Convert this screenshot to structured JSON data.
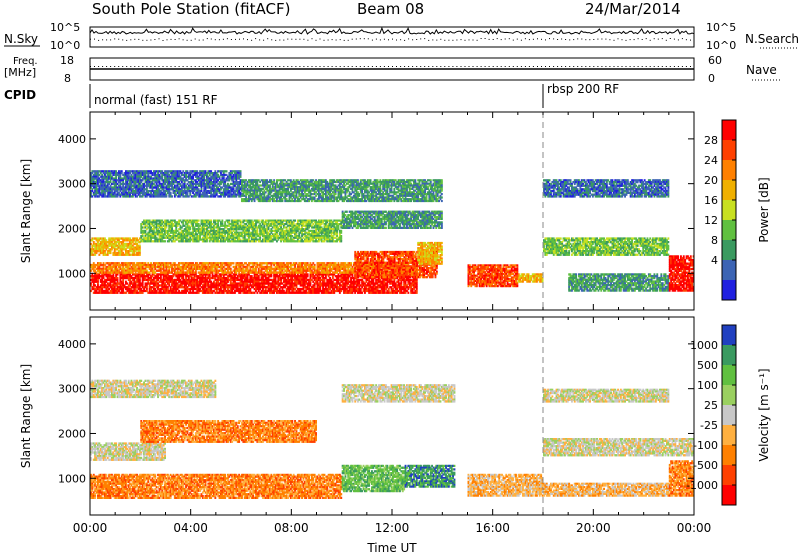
{
  "header": {
    "station": "South Pole Station (fitACF)",
    "beam": "Beam 08",
    "date": "24/Mar/2014"
  },
  "strips": {
    "nsky_label": "N.Sky",
    "nsky_ticks": [
      "10^5",
      "10^0"
    ],
    "nsky_right_ticks": [
      "10^5",
      "10^0"
    ],
    "nsearch_label": "N.Search",
    "freq_label_1": "Freq.",
    "freq_label_2": "[MHz]",
    "freq_ticks": [
      "18",
      "8"
    ],
    "nave_label": "Nave",
    "nave_ticks": [
      "60",
      "0"
    ],
    "cpid_label": "CPID",
    "cpid_mode_1": "normal (fast) 151 RF",
    "cpid_mode_2": "rbsp 200 RF",
    "cpid_mode_2_start_hour": 18.0
  },
  "chart_data": [
    {
      "type": "heatmap",
      "quantity": "power",
      "ylabel": "Slant Range [km]",
      "xlabel": "",
      "xlim": [
        0,
        24
      ],
      "ylim": [
        180,
        4600
      ],
      "y_ticks": [
        1000,
        2000,
        3000,
        4000
      ],
      "colorbar_label": "Power [dB]",
      "colorbar_ticks": [
        "28",
        "24",
        "20",
        "16",
        "12",
        "8",
        "4"
      ],
      "colorbar_colors": [
        "#ff0000",
        "#ff4000",
        "#ff8000",
        "#f0b000",
        "#c8e020",
        "#60c040",
        "#3a9a60",
        "#3c64b4",
        "#2020e0"
      ],
      "regions": [
        {
          "x0": 0.0,
          "x1": 13.0,
          "r0": 550,
          "r1": 1000,
          "level": 0
        },
        {
          "x0": 0.0,
          "x1": 13.0,
          "r0": 1000,
          "r1": 1250,
          "level": 2
        },
        {
          "x0": 10.5,
          "x1": 13.8,
          "r0": 900,
          "r1": 1500,
          "level": 1
        },
        {
          "x0": 13.0,
          "x1": 14.0,
          "r0": 1200,
          "r1": 1700,
          "level": 3
        },
        {
          "x0": 15.0,
          "x1": 17.0,
          "r0": 700,
          "r1": 1200,
          "level": 1
        },
        {
          "x0": 17.0,
          "x1": 18.0,
          "r0": 800,
          "r1": 1000,
          "level": 3
        },
        {
          "x0": 19.0,
          "x1": 23.0,
          "r0": 600,
          "r1": 1000,
          "level": 6
        },
        {
          "x0": 23.0,
          "x1": 24.0,
          "r0": 600,
          "r1": 1400,
          "level": 0
        },
        {
          "x0": 0.0,
          "x1": 2.0,
          "r0": 1400,
          "r1": 1800,
          "level": 3
        },
        {
          "x0": 2.0,
          "x1": 10.0,
          "r0": 1700,
          "r1": 2200,
          "level": 5
        },
        {
          "x0": 10.0,
          "x1": 14.0,
          "r0": 2000,
          "r1": 2400,
          "level": 6
        },
        {
          "x0": 18.0,
          "x1": 23.0,
          "r0": 1400,
          "r1": 1800,
          "level": 5
        },
        {
          "x0": 0.0,
          "x1": 6.0,
          "r0": 2700,
          "r1": 3300,
          "level": 7
        },
        {
          "x0": 6.0,
          "x1": 14.0,
          "r0": 2600,
          "r1": 3100,
          "level": 6
        },
        {
          "x0": 18.0,
          "x1": 23.0,
          "r0": 2700,
          "r1": 3100,
          "level": 7
        }
      ]
    },
    {
      "type": "heatmap",
      "quantity": "velocity",
      "ylabel": "Slant Range [km]",
      "xlabel": "Time UT",
      "xlim": [
        0,
        24
      ],
      "ylim": [
        180,
        4600
      ],
      "y_ticks": [
        1000,
        2000,
        3000,
        4000
      ],
      "x_ticks": [
        "00:00",
        "04:00",
        "08:00",
        "12:00",
        "16:00",
        "20:00",
        "00:00"
      ],
      "colorbar_label": "Velocity [m s⁻¹]",
      "colorbar_ticks": [
        "1000",
        "500",
        "100",
        "25",
        "-25",
        "-100",
        "-500",
        "-1000"
      ],
      "colorbar_colors": [
        "#2040c0",
        "#3a9a60",
        "#60c040",
        "#9ad060",
        "#c8c8c8",
        "#ffb040",
        "#ff8000",
        "#ff4000",
        "#ff0000"
      ],
      "regions": [
        {
          "x0": 0.0,
          "x1": 10.0,
          "r0": 550,
          "r1": 1100,
          "level": 6
        },
        {
          "x0": 10.0,
          "x1": 12.5,
          "r0": 700,
          "r1": 1300,
          "level": 2
        },
        {
          "x0": 12.5,
          "x1": 14.5,
          "r0": 800,
          "r1": 1300,
          "level": 1
        },
        {
          "x0": 15.0,
          "x1": 18.0,
          "r0": 600,
          "r1": 1100,
          "level": 5
        },
        {
          "x0": 18.0,
          "x1": 23.0,
          "r0": 600,
          "r1": 900,
          "level": 5
        },
        {
          "x0": 23.0,
          "x1": 24.0,
          "r0": 600,
          "r1": 1400,
          "level": 6
        },
        {
          "x0": 0.0,
          "x1": 3.0,
          "r0": 1400,
          "r1": 1800,
          "level": 4
        },
        {
          "x0": 2.0,
          "x1": 9.0,
          "r0": 1800,
          "r1": 2300,
          "level": 6
        },
        {
          "x0": 18.0,
          "x1": 24.0,
          "r0": 1500,
          "r1": 1900,
          "level": 4
        },
        {
          "x0": 0.0,
          "x1": 5.0,
          "r0": 2800,
          "r1": 3200,
          "level": 4
        },
        {
          "x0": 10.0,
          "x1": 14.5,
          "r0": 2700,
          "r1": 3100,
          "level": 4
        },
        {
          "x0": 18.0,
          "x1": 23.0,
          "r0": 2700,
          "r1": 3000,
          "level": 4
        }
      ]
    }
  ]
}
